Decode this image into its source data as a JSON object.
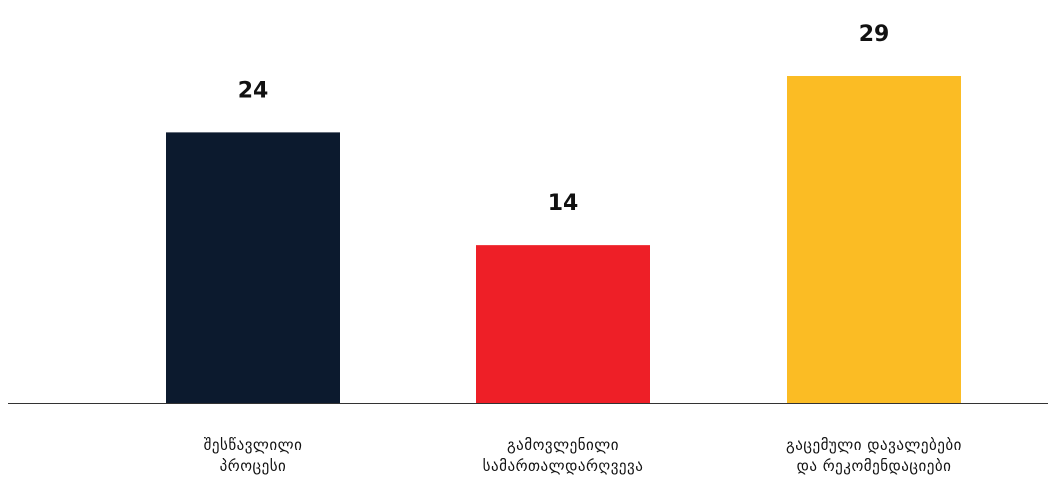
{
  "chart_data": {
    "type": "bar",
    "categories": [
      [
        "შესწავლილი",
        "პროცესი"
      ],
      [
        "გამოვლენილი",
        "სამართალდარღვევა"
      ],
      [
        "გაცემული დავალებები",
        "და რეკომენდაციები"
      ]
    ],
    "values": [
      24,
      14,
      29
    ],
    "colors": [
      "#0c1a2e",
      "#ee1f27",
      "#fbbc24"
    ],
    "ylim": [
      0,
      29
    ],
    "grid": false,
    "legend": "none"
  }
}
